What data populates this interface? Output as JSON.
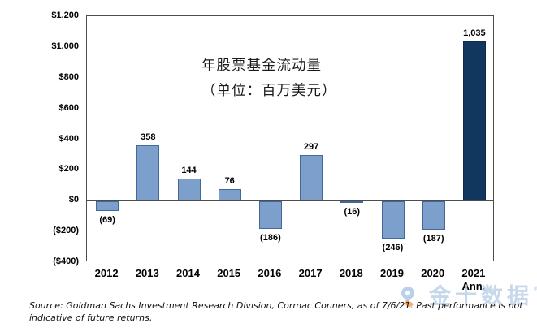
{
  "chart_data": {
    "type": "bar",
    "title_line1": "年股票基金流动量",
    "title_line2": "（单位：百万美元）",
    "categories": [
      "2012",
      "2013",
      "2014",
      "2015",
      "2016",
      "2017",
      "2018",
      "2019",
      "2020",
      "2021"
    ],
    "category_sublabels": [
      "",
      "",
      "",
      "",
      "",
      "",
      "",
      "",
      "",
      "Ann."
    ],
    "values": [
      -69,
      358,
      144,
      76,
      -186,
      297,
      -16,
      -246,
      -187,
      1035
    ],
    "value_labels": [
      "(69)",
      "358",
      "144",
      "76",
      "(186)",
      "297",
      "(16)",
      "(246)",
      "(187)",
      "1,035"
    ],
    "y_axis": {
      "tick_values": [
        1200,
        1000,
        800,
        600,
        400,
        200,
        0,
        -200,
        -400
      ],
      "tick_labels": [
        "$1,200",
        "$1,000",
        "$800",
        "$600",
        "$400",
        "$200",
        "$0",
        "($200)",
        "($400)"
      ]
    },
    "ylim": [
      -400,
      1200
    ],
    "grid": "off",
    "legend": "none",
    "bar_color": "#7C9FCB",
    "bar_border_color": "#45689B",
    "highlight_index": 9,
    "highlight_color": "#11375F",
    "highlight_border_color": "#0D2B4C"
  },
  "source": {
    "line1": "Source: Goldman Sachs Investment Research Division, Cormac Conners, as of 7/6/21. Past performance is not",
    "line2": "indicative of future returns."
  },
  "watermark": {
    "text": "金十数据",
    "reg_mark": "®"
  }
}
